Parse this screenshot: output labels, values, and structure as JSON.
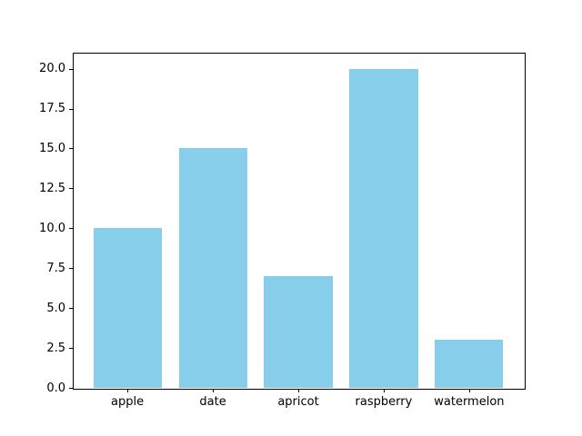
{
  "chart_data": {
    "type": "bar",
    "title": "",
    "xlabel": "",
    "ylabel": "",
    "categories": [
      "apple",
      "date",
      "apricot",
      "raspberry",
      "watermelon"
    ],
    "values": [
      10,
      15,
      7,
      20,
      3
    ],
    "bar_color": "#87CEEB",
    "bar_width_fraction": 0.8,
    "ylim": [
      0,
      21
    ],
    "yticks": [
      0.0,
      2.5,
      5.0,
      7.5,
      10.0,
      12.5,
      15.0,
      17.5,
      20.0
    ],
    "ytick_labels": [
      "0.0",
      "2.5",
      "5.0",
      "7.5",
      "10.0",
      "12.5",
      "15.0",
      "17.5",
      "20.0"
    ],
    "grid": false,
    "legend": null,
    "spine_color": "#000000",
    "background_color": "#ffffff"
  }
}
